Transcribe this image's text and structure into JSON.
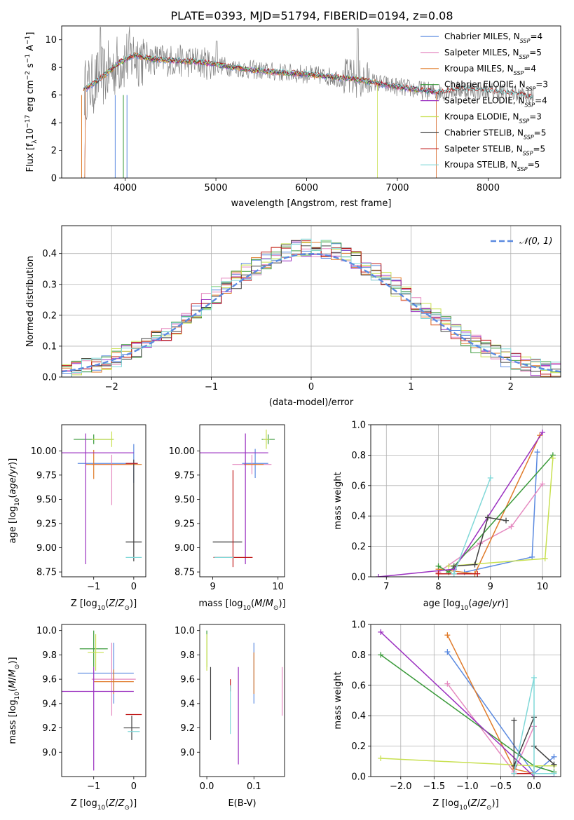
{
  "figure": {
    "title": "PLATE=0393, MJD=51794, FIBERID=0194, z=0.08"
  },
  "series_styles": [
    {
      "name": "Chabrier MILES, N_SSP=4",
      "color": "#5b8ae0"
    },
    {
      "name": "Salpeter MILES, N_SSP=5",
      "color": "#e58ac0"
    },
    {
      "name": "Kroupa MILES, N_SSP=4",
      "color": "#e07b2a"
    },
    {
      "name": "Chabrier ELODIE, N_SSP=3",
      "color": "#3a9a3a"
    },
    {
      "name": "Salpeter ELODIE, N_SSP=4",
      "color": "#9b30c0"
    },
    {
      "name": "Kroupa ELODIE, N_SSP=3",
      "color": "#c8e050"
    },
    {
      "name": "Chabrier STELIB, N_SSP=5",
      "color": "#404040"
    },
    {
      "name": "Salpeter STELIB, N_SSP=5",
      "color": "#c01818"
    },
    {
      "name": "Kroupa STELIB, N_SSP=5",
      "color": "#80d8d8"
    }
  ],
  "chart_data": [
    {
      "id": "spectrum",
      "type": "line",
      "xlabel": "wavelength [Angstrom, rest frame]",
      "ylabel": "Flux [f_λ10^-17 erg cm^-2 s^-1 A^-1]",
      "xlim": [
        3300,
        8800
      ],
      "ylim": [
        0,
        11
      ],
      "xticks": [
        4000,
        5000,
        6000,
        7000,
        8000
      ],
      "yticks": [
        0,
        2,
        4,
        6,
        8,
        10
      ],
      "legend": "upper right",
      "legend_entries": [
        {
          "base": "Chabrier MILES, N",
          "sub": "SSP",
          "tail": "=4"
        },
        {
          "base": "Salpeter MILES, N",
          "sub": "SSP",
          "tail": "=5"
        },
        {
          "base": "Kroupa MILES, N",
          "sub": "SSP",
          "tail": "=4"
        },
        {
          "base": "Chabrier ELODIE, N",
          "sub": "SSP",
          "tail": "=3"
        },
        {
          "base": "Salpeter ELODIE, N",
          "sub": "SSP",
          "tail": "=4"
        },
        {
          "base": "Kroupa ELODIE, N",
          "sub": "SSP",
          "tail": "=3"
        },
        {
          "base": "Chabrier STELIB, N",
          "sub": "SSP",
          "tail": "=5"
        },
        {
          "base": "Salpeter STELIB, N",
          "sub": "SSP",
          "tail": "=5"
        },
        {
          "base": "Kroupa STELIB, N",
          "sub": "SSP",
          "tail": "=5"
        }
      ],
      "data_color": "#808080",
      "model_profile": {
        "x": [
          3550,
          3650,
          3800,
          3950,
          4100,
          4300,
          4500,
          4800,
          5000,
          5300,
          5600,
          6000,
          6300,
          6600,
          6900,
          7200,
          7450
        ],
        "y": [
          6.4,
          6.8,
          7.6,
          8.4,
          8.9,
          8.6,
          8.5,
          8.4,
          8.2,
          7.9,
          7.7,
          7.5,
          7.3,
          7.1,
          6.7,
          6.4,
          6.2
        ]
      },
      "model_extended": {
        "x": [
          7450,
          7700,
          8000,
          8300,
          8500
        ],
        "y": [
          6.2,
          6.4,
          6.3,
          6.1,
          5.8
        ]
      }
    },
    {
      "id": "residuals",
      "type": "histogram",
      "xlabel": "(data-model)/error",
      "ylabel": "Normed distribution",
      "xlim": [
        -2.5,
        2.5
      ],
      "ylim": [
        0,
        0.49
      ],
      "xticks": [
        -2,
        -1,
        0,
        1,
        2
      ],
      "yticks": [
        0.0,
        0.1,
        0.2,
        0.3,
        0.4
      ],
      "grid": true,
      "legend": "upper right",
      "reference_label": "N(0,1)",
      "reference_color": "#5b8ae0",
      "bin_width": 0.1
    },
    {
      "id": "age_vs_Z",
      "type": "scatter",
      "xlabel": "Z [log10(Z/Z⊙)]",
      "ylabel": "age [log10(age/yr)]",
      "xlim": [
        -1.8,
        0.3
      ],
      "ylim": [
        8.7,
        10.27
      ],
      "xticks": [
        -1,
        0
      ],
      "yticks": [
        8.75,
        9.0,
        9.25,
        9.5,
        9.75,
        10.0
      ],
      "points": [
        {
          "series": 0,
          "x": 0.0,
          "y": 9.87,
          "xerr": [
            1.4,
            0.1
          ],
          "yerr": [
            0.2,
            0.2
          ]
        },
        {
          "series": 1,
          "x": -0.55,
          "y": 9.86,
          "xerr": [
            0.5,
            0.5
          ],
          "yerr": [
            0.42,
            0.1
          ]
        },
        {
          "series": 2,
          "x": -1.0,
          "y": 9.86,
          "xerr": [
            0.2,
            1.2
          ],
          "yerr": [
            0.15,
            0.15
          ]
        },
        {
          "series": 3,
          "x": -1.0,
          "y": 10.12,
          "xerr": [
            0.5,
            0.5
          ],
          "yerr": [
            0.05,
            0.05
          ]
        },
        {
          "series": 4,
          "x": -1.2,
          "y": 9.98,
          "xerr": [
            0.6,
            1.2
          ],
          "yerr": [
            1.15,
            0.2
          ]
        },
        {
          "series": 5,
          "x": -0.55,
          "y": 10.12,
          "xerr": [
            0.5,
            0.05
          ],
          "yerr": [
            0.08,
            0.08
          ]
        },
        {
          "series": 6,
          "x": 0.0,
          "y": 9.06,
          "xerr": [
            0.2,
            0.2
          ],
          "yerr": [
            0.2,
            0.85
          ]
        },
        {
          "series": 7,
          "x": -0.1,
          "y": 9.87,
          "xerr": [
            0.1,
            0.2
          ],
          "yerr": [
            0.0,
            0.0
          ]
        },
        {
          "series": 8,
          "x": 0.0,
          "y": 8.9,
          "xerr": [
            0.2,
            0.2
          ],
          "yerr": [
            0.0,
            0.0
          ]
        }
      ]
    },
    {
      "id": "age_vs_mass",
      "type": "scatter",
      "xlabel": "mass [log10(M/M⊙)]",
      "ylabel": "",
      "xlim": [
        8.8,
        10.1
      ],
      "ylim": [
        8.7,
        10.27
      ],
      "xticks": [
        9,
        10
      ],
      "yticks": [
        8.75,
        9.0,
        9.25,
        9.5,
        9.75,
        10.0
      ],
      "points": [
        {
          "series": 0,
          "x": 9.65,
          "y": 9.87,
          "xerr": [
            0.2,
            0.2
          ],
          "yerr": [
            0.15,
            0.15
          ]
        },
        {
          "series": 1,
          "x": 9.6,
          "y": 9.86,
          "xerr": [
            0.3,
            0.3
          ],
          "yerr": [
            0.1,
            0.1
          ]
        },
        {
          "series": 2,
          "x": 9.58,
          "y": 9.86,
          "xerr": [
            0.1,
            0.2
          ],
          "yerr": [
            0.0,
            0.0
          ]
        },
        {
          "series": 3,
          "x": 9.85,
          "y": 10.12,
          "xerr": [
            0.1,
            0.1
          ],
          "yerr": [
            0.05,
            0.05
          ]
        },
        {
          "series": 4,
          "x": 9.5,
          "y": 9.98,
          "xerr": [
            0.7,
            0.35
          ],
          "yerr": [
            1.15,
            0.2
          ]
        },
        {
          "series": 5,
          "x": 9.82,
          "y": 10.12,
          "xerr": [
            0.05,
            0.05
          ],
          "yerr": [
            0.1,
            0.1
          ]
        },
        {
          "series": 6,
          "x": 9.2,
          "y": 9.06,
          "xerr": [
            0.2,
            0.25
          ],
          "yerr": [
            0.0,
            0.0
          ]
        },
        {
          "series": 7,
          "x": 9.31,
          "y": 8.9,
          "xerr": [
            0.3,
            0.3
          ],
          "yerr": [
            0.1,
            0.9
          ]
        },
        {
          "series": 8,
          "x": 9.17,
          "y": 8.9,
          "xerr": [
            0.15,
            0.15
          ],
          "yerr": [
            0.0,
            0.0
          ]
        }
      ]
    },
    {
      "id": "weight_vs_age",
      "type": "line",
      "xlabel": "age [log10(age/yr)]",
      "ylabel": "mass weight",
      "xlim": [
        6.7,
        10.35
      ],
      "ylim": [
        0,
        1.0
      ],
      "xticks": [
        7,
        8,
        9,
        10
      ],
      "yticks": [
        0.0,
        0.2,
        0.4,
        0.6,
        0.8,
        1.0
      ],
      "grid": true,
      "series": [
        {
          "series": 0,
          "x": [
            8.5,
            9.8,
            9.9
          ],
          "y": [
            0.03,
            0.13,
            0.82
          ]
        },
        {
          "series": 1,
          "x": [
            8.0,
            8.8,
            9.4,
            10.0
          ],
          "y": [
            0.03,
            0.22,
            0.33,
            0.61
          ]
        },
        {
          "series": 2,
          "x": [
            8.0,
            8.7,
            9.95
          ],
          "y": [
            0.05,
            0.02,
            0.93
          ]
        },
        {
          "series": 3,
          "x": [
            8.0,
            8.2,
            10.2
          ],
          "y": [
            0.07,
            0.03,
            0.8
          ]
        },
        {
          "series": 4,
          "x": [
            6.85,
            8.3,
            10.0
          ],
          "y": [
            0.0,
            0.05,
            0.95
          ]
        },
        {
          "series": 5,
          "x": [
            8.2,
            10.05,
            10.2
          ],
          "y": [
            0.07,
            0.12,
            0.78
          ]
        },
        {
          "series": 6,
          "x": [
            8.3,
            8.7,
            8.95,
            9.3
          ],
          "y": [
            0.07,
            0.08,
            0.39,
            0.37
          ]
        },
        {
          "series": 7,
          "x": [
            8.0,
            8.75
          ],
          "y": [
            0.02,
            0.02
          ]
        },
        {
          "series": 8,
          "x": [
            8.3,
            9.0
          ],
          "y": [
            0.02,
            0.65
          ]
        }
      ]
    },
    {
      "id": "mass_vs_Z",
      "type": "scatter",
      "xlabel": "Z [log10(Z/Z⊙)]",
      "ylabel": "mass [log10(M/M⊙)]",
      "xlim": [
        -1.8,
        0.3
      ],
      "ylim": [
        8.8,
        10.05
      ],
      "xticks": [
        -1,
        0
      ],
      "yticks": [
        9.0,
        9.2,
        9.4,
        9.6,
        9.8,
        10.0
      ],
      "points": [
        {
          "series": 0,
          "x": -0.5,
          "y": 9.65,
          "xerr": [
            0.9,
            0.5
          ],
          "yerr": [
            0.25,
            0.25
          ]
        },
        {
          "series": 1,
          "x": -0.55,
          "y": 9.6,
          "xerr": [
            0.5,
            0.6
          ],
          "yerr": [
            0.3,
            0.3
          ]
        },
        {
          "series": 2,
          "x": -0.5,
          "y": 9.58,
          "xerr": [
            0.5,
            0.5
          ],
          "yerr": [
            0.1,
            0.1
          ]
        },
        {
          "series": 3,
          "x": -1.0,
          "y": 9.85,
          "xerr": [
            0.35,
            0.35
          ],
          "yerr": [
            0.15,
            0.15
          ]
        },
        {
          "series": 4,
          "x": -1.0,
          "y": 9.5,
          "xerr": [
            0.8,
            1.0
          ],
          "yerr": [
            0.65,
            0.2
          ]
        },
        {
          "series": 5,
          "x": -0.95,
          "y": 9.82,
          "xerr": [
            0.2,
            0.2
          ],
          "yerr": [
            0.15,
            0.15
          ]
        },
        {
          "series": 6,
          "x": -0.05,
          "y": 9.2,
          "xerr": [
            0.2,
            0.2
          ],
          "yerr": [
            0.1,
            0.1
          ]
        },
        {
          "series": 7,
          "x": 0.0,
          "y": 9.31,
          "xerr": [
            0.2,
            0.2
          ],
          "yerr": [
            0.0,
            0.0
          ]
        },
        {
          "series": 8,
          "x": 0.0,
          "y": 9.17,
          "xerr": [
            0.15,
            0.15
          ],
          "yerr": [
            0.0,
            0.0
          ]
        }
      ]
    },
    {
      "id": "mass_vs_EBV",
      "type": "scatter",
      "xlabel": "E(B-V)",
      "ylabel": "",
      "xlim": [
        -0.015,
        0.165
      ],
      "ylim": [
        8.8,
        10.05
      ],
      "xticks": [
        0.0,
        0.1
      ],
      "yticks": [
        9.0,
        9.2,
        9.4,
        9.6,
        9.8,
        10.0
      ],
      "points": [
        {
          "series": 0,
          "x": 0.1,
          "y": 9.65,
          "xerr": [
            0,
            0
          ],
          "yerr": [
            0.25,
            0.25
          ]
        },
        {
          "series": 1,
          "x": 0.16,
          "y": 9.5,
          "xerr": [
            0,
            0
          ],
          "yerr": [
            0.2,
            0.2
          ]
        },
        {
          "series": 2,
          "x": 0.1,
          "y": 9.65,
          "xerr": [
            0,
            0
          ],
          "yerr": [
            0.17,
            0.17
          ]
        },
        {
          "series": 3,
          "x": 0.0,
          "y": 9.85,
          "xerr": [
            0,
            0
          ],
          "yerr": [
            0.15,
            0.15
          ]
        },
        {
          "series": 4,
          "x": 0.067,
          "y": 9.3,
          "xerr": [
            0,
            0
          ],
          "yerr": [
            0.4,
            0.4
          ]
        },
        {
          "series": 5,
          "x": 0.0,
          "y": 9.82,
          "xerr": [
            0,
            0
          ],
          "yerr": [
            0.15,
            0.15
          ]
        },
        {
          "series": 6,
          "x": 0.008,
          "y": 9.4,
          "xerr": [
            0,
            0
          ],
          "yerr": [
            0.3,
            0.3
          ]
        },
        {
          "series": 7,
          "x": 0.05,
          "y": 9.55,
          "xerr": [
            0,
            0
          ],
          "yerr": [
            0.05,
            0.05
          ]
        },
        {
          "series": 8,
          "x": 0.05,
          "y": 9.35,
          "xerr": [
            0,
            0
          ],
          "yerr": [
            0.2,
            0.2
          ]
        }
      ]
    },
    {
      "id": "weight_vs_Z",
      "type": "line",
      "xlabel": "Z [log10(Z/Z⊙)]",
      "ylabel": "mass weight",
      "xlim": [
        -2.45,
        0.4
      ],
      "ylim": [
        0,
        1.0
      ],
      "xticks": [
        -2.0,
        -1.5,
        -1.0,
        -0.5,
        0.0
      ],
      "yticks": [
        0.0,
        0.2,
        0.4,
        0.6,
        0.8,
        1.0
      ],
      "grid": true,
      "series": [
        {
          "series": 0,
          "x": [
            -1.3,
            0.0,
            0.3
          ],
          "y": [
            0.82,
            0.02,
            0.13
          ]
        },
        {
          "series": 1,
          "x": [
            -1.3,
            -0.3,
            0.0
          ],
          "y": [
            0.61,
            0.03,
            0.33
          ]
        },
        {
          "series": 2,
          "x": [
            -1.3,
            -0.3,
            0.0
          ],
          "y": [
            0.93,
            0.05,
            0.02
          ]
        },
        {
          "series": 3,
          "x": [
            -2.3,
            0.0,
            0.3
          ],
          "y": [
            0.8,
            0.07,
            0.03
          ]
        },
        {
          "series": 4,
          "x": [
            -2.3,
            0.0,
            0.3
          ],
          "y": [
            0.95,
            0.0,
            0.0
          ]
        },
        {
          "series": 5,
          "x": [
            -2.3,
            0.0,
            0.3
          ],
          "y": [
            0.12,
            0.07,
            0.07
          ]
        },
        {
          "series": 6,
          "x": [
            -0.3,
            -0.3,
            0.0,
            0.0,
            0.3
          ],
          "y": [
            0.37,
            0.07,
            0.39,
            0.2,
            0.08
          ]
        },
        {
          "series": 7,
          "x": [
            -0.3,
            0.0
          ],
          "y": [
            0.02,
            0.02
          ]
        },
        {
          "series": 8,
          "x": [
            -0.3,
            0.0,
            0.0,
            0.3
          ],
          "y": [
            0.02,
            0.65,
            0.02,
            0.02
          ]
        }
      ]
    }
  ]
}
